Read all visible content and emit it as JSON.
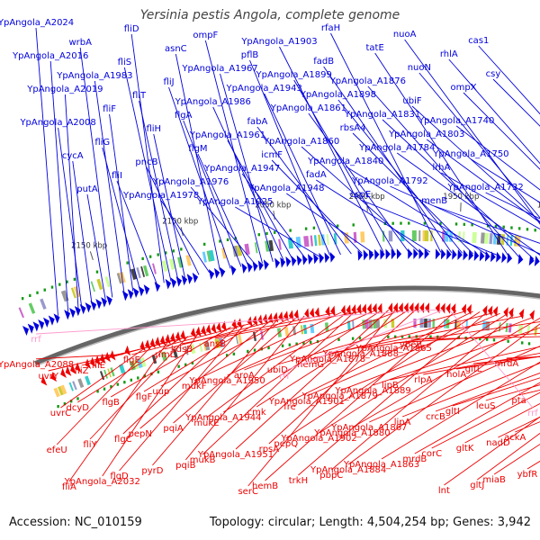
{
  "title": "Yersinia pestis Angola, complete genome",
  "footer": {
    "accession": "Accession: NC_010159",
    "topology": "Topology: circular; Length: 4,504,254 bp; Genes: 3,942"
  },
  "colors": {
    "forward": "#0000dd",
    "reverse": "#ee0000",
    "rna": "#ff99cc",
    "ring": "#666666",
    "tick_mark": "#119911"
  },
  "ticks": [
    {
      "label": "1800 kbp",
      "kbp": 1800
    },
    {
      "label": "1850 kbp",
      "kbp": 1850
    },
    {
      "label": "1900 kbp",
      "kbp": 1900
    },
    {
      "label": "1950 kbp",
      "kbp": 1950
    },
    {
      "label": "2000 kbp",
      "kbp": 2000
    },
    {
      "label": "2050 kbp",
      "kbp": 2050
    },
    {
      "label": "2100 kbp",
      "kbp": 2100
    },
    {
      "label": "2150 kbp",
      "kbp": 2150
    }
  ],
  "forward_genes": [
    {
      "label": "YpAngola_A2024",
      "kbp": 2178
    },
    {
      "label": "YpAngola_A2016",
      "kbp": 2172
    },
    {
      "label": "YpAngola_A2008",
      "kbp": 2164
    },
    {
      "label": "YpAngola_A1983",
      "kbp": 2139
    },
    {
      "label": "YpAngola_A2019",
      "kbp": 2166
    },
    {
      "label": "fliF",
      "kbp": 2134
    },
    {
      "label": "fliG",
      "kbp": 2130
    },
    {
      "label": "fliI",
      "kbp": 2120
    },
    {
      "label": "fliD",
      "kbp": 2116
    },
    {
      "label": "fliS",
      "kbp": 2112
    },
    {
      "label": "fliT",
      "kbp": 2108
    },
    {
      "label": "fliH",
      "kbp": 2104
    },
    {
      "label": "cycA",
      "kbp": 2158
    },
    {
      "label": "putA",
      "kbp": 2150
    },
    {
      "label": "wrbA",
      "kbp": 2146
    },
    {
      "label": "pncB",
      "kbp": 2096
    },
    {
      "label": "YpAngola_A1978",
      "kbp": 2090
    },
    {
      "label": "asnC",
      "kbp": 2084
    },
    {
      "label": "fliJ",
      "kbp": 2078
    },
    {
      "label": "flgA",
      "kbp": 2072
    },
    {
      "label": "flgM",
      "kbp": 2068
    },
    {
      "label": "YpAngola_A1976",
      "kbp": 2064
    },
    {
      "label": "ompF",
      "kbp": 2060
    },
    {
      "label": "YpAngola_A1967",
      "kbp": 2054
    },
    {
      "label": "YpAngola_A1986",
      "kbp": 2048
    },
    {
      "label": "YpAngola_A1961",
      "kbp": 2043
    },
    {
      "label": "YpAngola_A1947",
      "kbp": 2036
    },
    {
      "label": "YpAngola_A1925",
      "kbp": 2028
    },
    {
      "label": "pflB",
      "kbp": 2022
    },
    {
      "label": "YpAngola_A1943",
      "kbp": 2016
    },
    {
      "label": "fabA",
      "kbp": 2010
    },
    {
      "label": "icmF",
      "kbp": 2004
    },
    {
      "label": "YpAngola_A1948",
      "kbp": 1998
    },
    {
      "label": "YpAngola_A1903",
      "kbp": 1992
    },
    {
      "label": "YpAngola_A1899",
      "kbp": 1986
    },
    {
      "label": "YpAngola_A1861",
      "kbp": 1978
    },
    {
      "label": "YpAngola_A1860",
      "kbp": 1972
    },
    {
      "label": "fadA",
      "kbp": 1966
    },
    {
      "label": "rfaH",
      "kbp": 1960
    },
    {
      "label": "fadB",
      "kbp": 1954
    },
    {
      "label": "YpAngola_A1898",
      "kbp": 1948
    },
    {
      "label": "rbsA4",
      "kbp": 1942
    },
    {
      "label": "YpAngola_A1840",
      "kbp": 1934
    },
    {
      "label": "cspE",
      "kbp": 1928
    },
    {
      "label": "tatE",
      "kbp": 1922
    },
    {
      "label": "YpAngola_A1876",
      "kbp": 1916
    },
    {
      "label": "YpAngola_A1831",
      "kbp": 1908
    },
    {
      "label": "YpAngola_A1784",
      "kbp": 1900
    },
    {
      "label": "YpAngola_A1792",
      "kbp": 1894
    },
    {
      "label": "nuoA",
      "kbp": 1888
    },
    {
      "label": "nuoN",
      "kbp": 1882
    },
    {
      "label": "ubiF",
      "kbp": 1876
    },
    {
      "label": "YpAngola_A1803",
      "kbp": 1868
    },
    {
      "label": "lrhA",
      "kbp": 1862
    },
    {
      "label": "menB",
      "kbp": 1854
    },
    {
      "label": "rhlA",
      "kbp": 1848
    },
    {
      "label": "ompX",
      "kbp": 1842
    },
    {
      "label": "YpAngola_A1740",
      "kbp": 1836
    },
    {
      "label": "YpAngola_A1750",
      "kbp": 1830
    },
    {
      "label": "YpAngola_A1732",
      "kbp": 1822
    },
    {
      "label": "cas1",
      "kbp": 1812
    },
    {
      "label": "csy",
      "kbp": 1808
    }
  ],
  "reverse_genes": [
    {
      "label": "YpAngola_A2088",
      "kbp": 2150
    },
    {
      "label": "uvrY",
      "kbp": 2140
    },
    {
      "label": "uvrC",
      "kbp": 2136
    },
    {
      "label": "efeU",
      "kbp": 2132
    },
    {
      "label": "fliA",
      "kbp": 2122
    },
    {
      "label": "fliZ",
      "kbp": 2118
    },
    {
      "label": "dcyD",
      "kbp": 2114
    },
    {
      "label": "fliY",
      "kbp": 2110
    },
    {
      "label": "YpAngola_A2032",
      "kbp": 2104
    },
    {
      "label": "fliE",
      "kbp": 2098
    },
    {
      "label": "flgB",
      "kbp": 2084
    },
    {
      "label": "flgC",
      "kbp": 2080
    },
    {
      "label": "flgD",
      "kbp": 2076
    },
    {
      "label": "flgE",
      "kbp": 2072
    },
    {
      "label": "flgF",
      "kbp": 2068
    },
    {
      "label": "pepN",
      "kbp": 2060
    },
    {
      "label": "pyrD",
      "kbp": 2056
    },
    {
      "label": "rimL",
      "kbp": 2052
    },
    {
      "label": "uup",
      "kbp": 2048
    },
    {
      "label": "pqiA",
      "kbp": 2044
    },
    {
      "label": "pqiB",
      "kbp": 2040
    },
    {
      "label": "kdsB",
      "kbp": 2022
    },
    {
      "label": "mukF",
      "kbp": 2018
    },
    {
      "label": "mukE",
      "kbp": 2014
    },
    {
      "label": "mukB",
      "kbp": 2010
    },
    {
      "label": "ansB",
      "kbp": 2004
    },
    {
      "label": "YpAngola_A1950",
      "kbp": 1998
    },
    {
      "label": "YpAngola_A1944",
      "kbp": 1994
    },
    {
      "label": "YpAngola_A1951",
      "kbp": 1990
    },
    {
      "label": "serC",
      "kbp": 1986
    },
    {
      "label": "aroA",
      "kbp": 1982
    },
    {
      "label": "cmk",
      "kbp": 1978
    },
    {
      "label": "rpsA",
      "kbp": 1974
    },
    {
      "label": "hemB",
      "kbp": 1950
    },
    {
      "label": "ubiD",
      "kbp": 1944
    },
    {
      "label": "fre",
      "kbp": 1940
    },
    {
      "label": "pepQ",
      "kbp": 1936
    },
    {
      "label": "trkH",
      "kbp": 1932
    },
    {
      "label": "hemG",
      "kbp": 1928
    },
    {
      "label": "YpAngola_A1901",
      "kbp": 1924
    },
    {
      "label": "YpAngola_A1902",
      "kbp": 1920
    },
    {
      "label": "pbpC",
      "kbp": 1916
    },
    {
      "label": "YpAngola_A1878",
      "kbp": 1910
    },
    {
      "label": "YpAngola_A1879",
      "kbp": 1904
    },
    {
      "label": "YpAngola_A1880",
      "kbp": 1900
    },
    {
      "label": "YpAngola_A1884",
      "kbp": 1896
    },
    {
      "label": "YpAngola_A1888",
      "kbp": 1892
    },
    {
      "label": "YpAngola_A1889",
      "kbp": 1888
    },
    {
      "label": "YpAngola_A1867",
      "kbp": 1872
    },
    {
      "label": "YpAngola_A1863",
      "kbp": 1866
    },
    {
      "label": "YpAngola_A1865",
      "kbp": 1860
    },
    {
      "label": "lipB",
      "kbp": 1856
    },
    {
      "label": "lipA",
      "kbp": 1852
    },
    {
      "label": "mrdB",
      "kbp": 1848
    },
    {
      "label": "ybeB",
      "kbp": 1844
    },
    {
      "label": "crcB",
      "kbp": 1840
    },
    {
      "label": "rlpA",
      "kbp": 1842
    },
    {
      "label": "corC",
      "kbp": 1836
    },
    {
      "label": "lnt",
      "kbp": 1834
    },
    {
      "label": "holA",
      "kbp": 1832
    },
    {
      "label": "gltI",
      "kbp": 1830
    },
    {
      "label": "gltK",
      "kbp": 1828
    },
    {
      "label": "gltJ",
      "kbp": 1826
    },
    {
      "label": "gltL",
      "kbp": 1824
    },
    {
      "label": "leuS",
      "kbp": 1818
    },
    {
      "label": "nadD",
      "kbp": 1814
    },
    {
      "label": "mrdA",
      "kbp": 1808
    },
    {
      "label": "miaB",
      "kbp": 1812
    },
    {
      "label": "pta",
      "kbp": 1804
    },
    {
      "label": "ackA",
      "kbp": 1800
    },
    {
      "label": "ybfR",
      "kbp": 1796
    }
  ],
  "rna_genes": [
    {
      "label": "rrf",
      "kbp": 1962
    },
    {
      "label": "rrf",
      "kbp": 1958
    },
    {
      "label": "rrf",
      "kbp": 1954
    }
  ]
}
